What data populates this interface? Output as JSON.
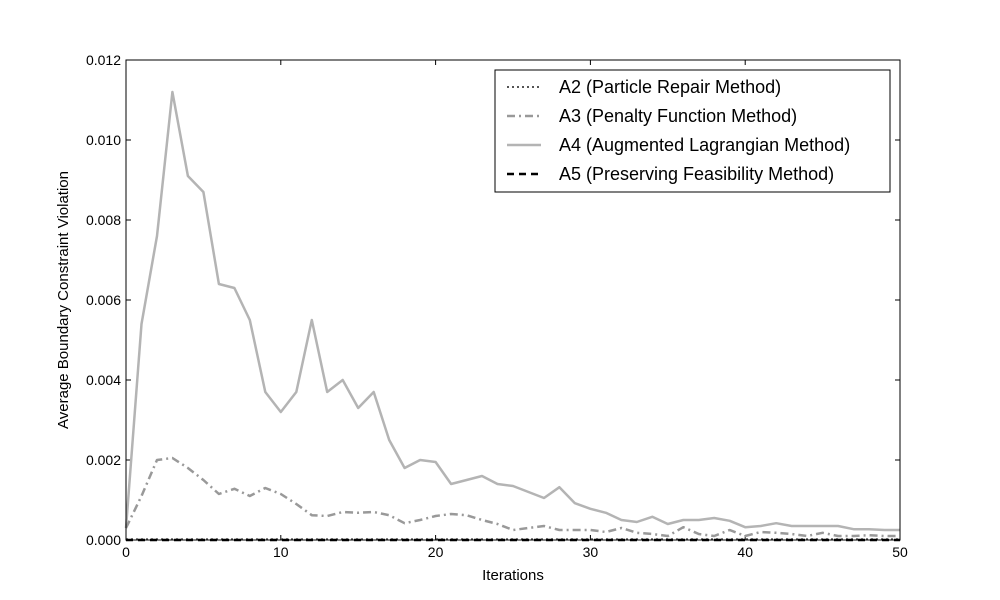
{
  "chart_data": {
    "type": "line",
    "title": "",
    "xlabel": "Iterations",
    "ylabel": "Average Boundary Constraint Violation",
    "xlim": [
      0,
      50
    ],
    "ylim": [
      0,
      0.012
    ],
    "x_ticks": [
      "0",
      "10",
      "20",
      "30",
      "40",
      "50"
    ],
    "y_ticks": [
      "0.000",
      "0.002",
      "0.004",
      "0.006",
      "0.008",
      "0.010",
      "0.012"
    ],
    "grid": false,
    "legend_position": "top-right",
    "x": [
      0,
      1,
      2,
      3,
      4,
      5,
      6,
      7,
      8,
      9,
      10,
      11,
      12,
      13,
      14,
      15,
      16,
      17,
      18,
      19,
      20,
      21,
      22,
      23,
      24,
      25,
      26,
      27,
      28,
      29,
      30,
      31,
      32,
      33,
      34,
      35,
      36,
      37,
      38,
      39,
      40,
      41,
      42,
      43,
      44,
      45,
      46,
      47,
      48,
      49,
      50
    ],
    "series": [
      {
        "name": "A2 (Particle Repair Method)",
        "line_style": "dotted",
        "color": "#555555",
        "values": [
          2e-05,
          2e-05,
          2e-05,
          2e-05,
          2e-05,
          2e-05,
          2e-05,
          2e-05,
          2e-05,
          2e-05,
          2e-05,
          2e-05,
          2e-05,
          2e-05,
          2e-05,
          2e-05,
          2e-05,
          2e-05,
          2e-05,
          2e-05,
          2e-05,
          2e-05,
          2e-05,
          2e-05,
          2e-05,
          2e-05,
          2e-05,
          2e-05,
          2e-05,
          2e-05,
          2e-05,
          2e-05,
          2e-05,
          2e-05,
          2e-05,
          2e-05,
          2e-05,
          2e-05,
          2e-05,
          2e-05,
          2e-05,
          2e-05,
          2e-05,
          2e-05,
          2e-05,
          2e-05,
          2e-05,
          2e-05,
          2e-05,
          2e-05,
          2e-05
        ]
      },
      {
        "name": "A3 (Penalty Function Method)",
        "line_style": "dashdot",
        "color": "#999999",
        "values": [
          0.0003,
          0.0011,
          0.002,
          0.00205,
          0.0018,
          0.0015,
          0.00115,
          0.00128,
          0.0011,
          0.0013,
          0.00115,
          0.0009,
          0.00062,
          0.0006,
          0.0007,
          0.00068,
          0.0007,
          0.00062,
          0.00042,
          0.0005,
          0.0006,
          0.00065,
          0.00062,
          0.0005,
          0.0004,
          0.00025,
          0.0003,
          0.00035,
          0.00025,
          0.00025,
          0.00025,
          0.0002,
          0.0003,
          0.00018,
          0.00015,
          0.0001,
          0.00032,
          0.00015,
          0.0001,
          0.00025,
          0.0001,
          0.0002,
          0.00018,
          0.00015,
          0.0001,
          0.00018,
          0.0001,
          0.0001,
          0.00012,
          0.0001,
          0.0001
        ]
      },
      {
        "name": "A4 (Augmented Lagrangian Method)",
        "line_style": "solid",
        "color": "#b4b4b4",
        "values": [
          0.0003,
          0.0054,
          0.0076,
          0.0112,
          0.0091,
          0.0087,
          0.0064,
          0.0063,
          0.0055,
          0.0037,
          0.0032,
          0.0037,
          0.0055,
          0.0037,
          0.004,
          0.0033,
          0.0037,
          0.0025,
          0.0018,
          0.002,
          0.00195,
          0.0014,
          0.0015,
          0.0016,
          0.0014,
          0.00135,
          0.0012,
          0.00105,
          0.00132,
          0.00092,
          0.00078,
          0.00068,
          0.0005,
          0.00045,
          0.00058,
          0.0004,
          0.0005,
          0.0005,
          0.00055,
          0.00048,
          0.00032,
          0.00035,
          0.00042,
          0.00035,
          0.00035,
          0.00035,
          0.00035,
          0.00027,
          0.00027,
          0.00025,
          0.00025
        ]
      },
      {
        "name": "A5 (Preserving Feasibility Method)",
        "line_style": "dashed",
        "color": "#000000",
        "values": [
          0,
          0,
          0,
          0,
          0,
          0,
          0,
          0,
          0,
          0,
          0,
          0,
          0,
          0,
          0,
          0,
          0,
          0,
          0,
          0,
          0,
          0,
          0,
          0,
          0,
          0,
          0,
          0,
          0,
          0,
          0,
          0,
          0,
          0,
          0,
          0,
          0,
          0,
          0,
          0,
          0,
          0,
          0,
          0,
          0,
          0,
          0,
          0,
          0,
          0,
          0
        ]
      }
    ]
  }
}
